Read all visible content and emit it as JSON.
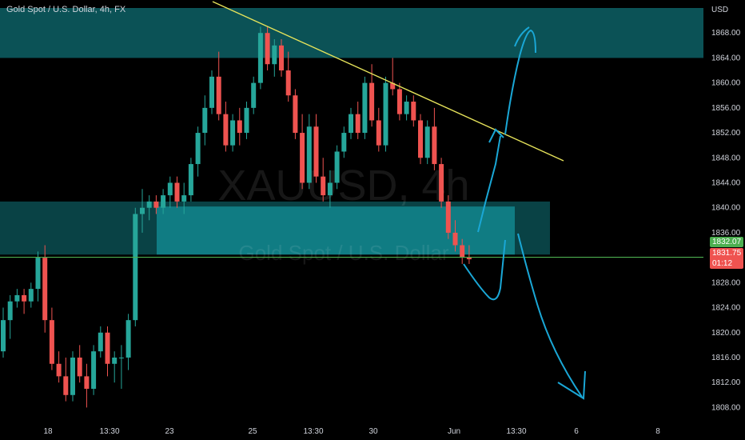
{
  "symbol_title": "Gold Spot / U.S. Dollar, 4h, FX",
  "watermark": {
    "ticker": "XAUUSD, 4h",
    "name": "Gold Spot / U.S. Dollar"
  },
  "currency_label": "USD",
  "price_badges": {
    "green_line": "1832.07",
    "last_price": "1831.75",
    "countdown": "01:12"
  },
  "colors": {
    "up": "#26a69a",
    "down": "#ef5350",
    "zone": "#0f6e73",
    "support_line": "#4caf50",
    "trendline": "#e6e35a",
    "drawing": "#1aa7d6"
  },
  "chart_data": {
    "type": "candlestick",
    "title": "Gold Spot / U.S. Dollar, 4h, FX",
    "ylabel": "USD",
    "ylim": [
      1806,
      1872
    ],
    "y_ticks": [
      1808,
      1812,
      1816,
      1820,
      1824,
      1828,
      1832,
      1836,
      1840,
      1844,
      1848,
      1852,
      1856,
      1860,
      1864,
      1868
    ],
    "x_ticks": [
      "18",
      "13:30",
      "23",
      "25",
      "13:30",
      "30",
      "Jun",
      "13:30",
      "6",
      "8"
    ],
    "candles": [
      [
        1817,
        1824,
        1816,
        1822
      ],
      [
        1822,
        1826,
        1819,
        1825
      ],
      [
        1825,
        1827,
        1824,
        1826
      ],
      [
        1826,
        1827,
        1823,
        1825
      ],
      [
        1825,
        1828,
        1824,
        1827
      ],
      [
        1827,
        1833,
        1825,
        1832
      ],
      [
        1832,
        1834,
        1820,
        1822
      ],
      [
        1822,
        1824,
        1814,
        1815
      ],
      [
        1815,
        1817,
        1812,
        1813
      ],
      [
        1813,
        1816,
        1809,
        1810
      ],
      [
        1810,
        1817,
        1809,
        1816
      ],
      [
        1816,
        1818,
        1812,
        1813
      ],
      [
        1813,
        1815,
        1808,
        1811
      ],
      [
        1811,
        1818,
        1810,
        1817
      ],
      [
        1817,
        1821,
        1816,
        1820
      ],
      [
        1820,
        1821,
        1813,
        1815
      ],
      [
        1815,
        1817,
        1812,
        1816
      ],
      [
        1816,
        1818,
        1811,
        1816
      ],
      [
        1816,
        1823,
        1814,
        1822
      ],
      [
        1822,
        1840,
        1821,
        1839
      ],
      [
        1839,
        1843,
        1836,
        1840
      ],
      [
        1840,
        1842,
        1838,
        1841
      ],
      [
        1841,
        1842,
        1839,
        1840
      ],
      [
        1840,
        1843,
        1839,
        1842
      ],
      [
        1842,
        1845,
        1840,
        1844
      ],
      [
        1844,
        1845,
        1840,
        1841
      ],
      [
        1841,
        1844,
        1839,
        1842
      ],
      [
        1842,
        1848,
        1841,
        1847
      ],
      [
        1847,
        1853,
        1845,
        1852
      ],
      [
        1852,
        1858,
        1850,
        1856
      ],
      [
        1856,
        1862,
        1855,
        1861
      ],
      [
        1861,
        1865,
        1854,
        1855
      ],
      [
        1855,
        1857,
        1849,
        1850
      ],
      [
        1850,
        1855,
        1849,
        1854
      ],
      [
        1854,
        1856,
        1850,
        1852
      ],
      [
        1852,
        1857,
        1851,
        1856
      ],
      [
        1856,
        1861,
        1855,
        1860
      ],
      [
        1860,
        1869,
        1859,
        1868
      ],
      [
        1868,
        1869,
        1862,
        1863
      ],
      [
        1863,
        1867,
        1861,
        1866
      ],
      [
        1866,
        1867,
        1861,
        1862
      ],
      [
        1862,
        1865,
        1857,
        1858
      ],
      [
        1858,
        1859,
        1851,
        1852
      ],
      [
        1852,
        1855,
        1843,
        1844
      ],
      [
        1844,
        1855,
        1843,
        1853
      ],
      [
        1853,
        1855,
        1844,
        1845
      ],
      [
        1845,
        1848,
        1841,
        1842
      ],
      [
        1842,
        1846,
        1840,
        1844
      ],
      [
        1844,
        1850,
        1843,
        1849
      ],
      [
        1849,
        1853,
        1848,
        1852
      ],
      [
        1852,
        1856,
        1851,
        1855
      ],
      [
        1855,
        1857,
        1851,
        1852
      ],
      [
        1852,
        1861,
        1851,
        1860
      ],
      [
        1860,
        1863,
        1853,
        1854
      ],
      [
        1854,
        1856,
        1849,
        1850
      ],
      [
        1850,
        1861,
        1849,
        1860
      ],
      [
        1860,
        1864,
        1858,
        1859
      ],
      [
        1859,
        1860,
        1854,
        1855
      ],
      [
        1855,
        1858,
        1854,
        1857
      ],
      [
        1857,
        1858,
        1853,
        1854
      ],
      [
        1854,
        1855,
        1847,
        1848
      ],
      [
        1848,
        1854,
        1847,
        1853
      ],
      [
        1853,
        1856,
        1846,
        1847
      ],
      [
        1847,
        1848,
        1840,
        1841
      ],
      [
        1841,
        1842,
        1835,
        1836
      ],
      [
        1836,
        1838,
        1833,
        1834
      ],
      [
        1834,
        1835,
        1831,
        1832
      ],
      [
        1832,
        1834,
        1831,
        1831.75
      ]
    ],
    "zones": [
      {
        "y_range": [
          1864,
          1872
        ]
      },
      {
        "y_range": [
          1832.5,
          1841
        ]
      }
    ],
    "horizontal_line": 1832.07,
    "last_price": 1831.75
  }
}
